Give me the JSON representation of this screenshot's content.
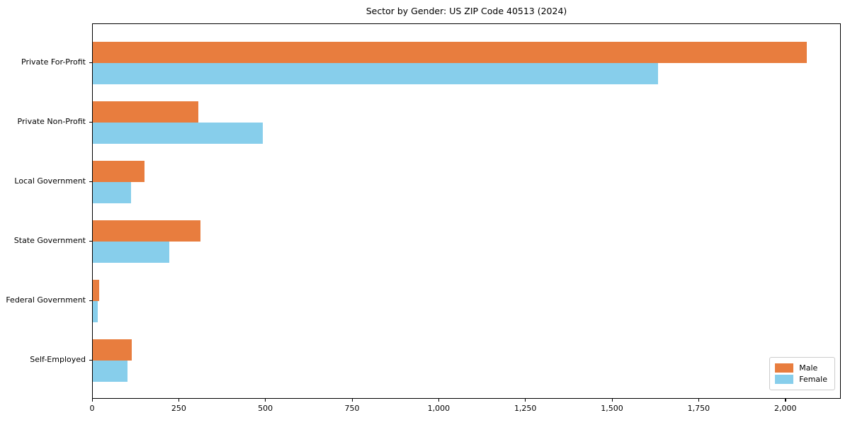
{
  "page": {
    "title": "Sector by Gender: US ZIP Code 40513 (2024)"
  },
  "chart_data": {
    "type": "bar",
    "orientation": "horizontal",
    "title": "Sector by Gender: US ZIP Code 40513 (2024)",
    "categories": [
      "Private For-Profit",
      "Private Non-Profit",
      "Local Government",
      "State Government",
      "Federal Government",
      "Self-Employed"
    ],
    "series": [
      {
        "name": "Male",
        "color": "#e87d3e",
        "values": [
          2060,
          305,
          150,
          310,
          18,
          112
        ]
      },
      {
        "name": "Female",
        "color": "#87ceeb",
        "values": [
          1630,
          490,
          110,
          220,
          15,
          100
        ]
      }
    ],
    "xlabel": "",
    "ylabel": "",
    "xlim": [
      0,
      2160
    ],
    "xticks": [
      0,
      250,
      500,
      750,
      1000,
      1250,
      1500,
      1750,
      2000
    ],
    "xtick_labels": [
      "0",
      "250",
      "500",
      "750",
      "1,000",
      "1,250",
      "1,500",
      "1,750",
      "2,000"
    ],
    "grid": false,
    "legend": {
      "position": "lower right",
      "entries": [
        "Male",
        "Female"
      ]
    }
  }
}
